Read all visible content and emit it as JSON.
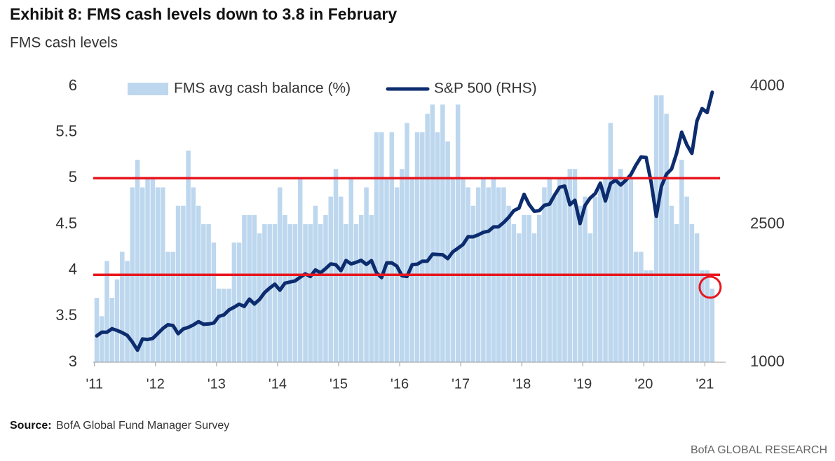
{
  "chart_data": {
    "type": "bar",
    "title": "Exhibit 8: FMS cash levels down to 3.8 in February",
    "subtitle": "FMS cash levels",
    "source_label": "Source:",
    "source_text": "BofA Global Fund Manager Survey",
    "footer": "BofA GLOBAL RESEARCH",
    "x": [
      2011,
      2011.083,
      2011.167,
      2011.25,
      2011.333,
      2011.417,
      2011.5,
      2011.583,
      2011.667,
      2011.75,
      2011.833,
      2011.917,
      2012,
      2012.083,
      2012.167,
      2012.25,
      2012.333,
      2012.417,
      2012.5,
      2012.583,
      2012.667,
      2012.75,
      2012.833,
      2012.917,
      2013,
      2013.083,
      2013.167,
      2013.25,
      2013.333,
      2013.417,
      2013.5,
      2013.583,
      2013.667,
      2013.75,
      2013.833,
      2013.917,
      2014,
      2014.083,
      2014.167,
      2014.25,
      2014.333,
      2014.417,
      2014.5,
      2014.583,
      2014.667,
      2014.75,
      2014.833,
      2014.917,
      2015,
      2015.083,
      2015.167,
      2015.25,
      2015.333,
      2015.417,
      2015.5,
      2015.583,
      2015.667,
      2015.75,
      2015.833,
      2015.917,
      2016,
      2016.083,
      2016.167,
      2016.25,
      2016.333,
      2016.417,
      2016.5,
      2016.583,
      2016.667,
      2016.75,
      2016.833,
      2016.917,
      2017,
      2017.083,
      2017.167,
      2017.25,
      2017.333,
      2017.417,
      2017.5,
      2017.583,
      2017.667,
      2017.75,
      2017.833,
      2017.917,
      2018,
      2018.083,
      2018.167,
      2018.25,
      2018.333,
      2018.417,
      2018.5,
      2018.583,
      2018.667,
      2018.75,
      2018.833,
      2018.917,
      2019,
      2019.083,
      2019.167,
      2019.25,
      2019.333,
      2019.417,
      2019.5,
      2019.583,
      2019.667,
      2019.75,
      2019.833,
      2019.917,
      2020,
      2020.083,
      2020.167,
      2020.25,
      2020.333,
      2020.417,
      2020.5,
      2020.583,
      2020.667,
      2020.75,
      2020.833,
      2020.917,
      2021,
      2021.083
    ],
    "series": [
      {
        "name": "FMS avg cash balance (%)",
        "type": "bar",
        "axis": "y",
        "color": "#bdd7ee",
        "values": [
          3.7,
          3.5,
          4.1,
          3.7,
          3.9,
          4.2,
          4.1,
          4.9,
          5.2,
          4.9,
          5.0,
          5.0,
          4.9,
          4.9,
          4.2,
          4.2,
          4.7,
          4.7,
          5.3,
          4.9,
          4.7,
          4.5,
          4.5,
          4.3,
          3.8,
          3.8,
          3.8,
          4.3,
          4.3,
          4.6,
          4.6,
          4.6,
          4.4,
          4.5,
          4.5,
          4.5,
          4.9,
          4.6,
          4.5,
          4.5,
          5.0,
          4.5,
          4.5,
          4.7,
          4.5,
          4.6,
          4.8,
          5.1,
          4.8,
          4.5,
          5.0,
          4.5,
          4.6,
          4.9,
          4.6,
          5.5,
          5.5,
          5.0,
          5.5,
          4.9,
          5.1,
          5.6,
          5.0,
          5.5,
          5.5,
          5.7,
          5.8,
          5.5,
          5.8,
          5.4,
          5.0,
          5.8,
          5.0,
          4.9,
          4.7,
          4.9,
          5.0,
          4.9,
          5.0,
          4.9,
          4.9,
          4.7,
          4.5,
          4.4,
          4.6,
          4.6,
          4.4,
          4.6,
          4.9,
          5.0,
          4.8,
          5.0,
          5.0,
          5.1,
          5.1,
          4.7,
          4.8,
          4.4,
          4.8,
          4.9,
          5.0,
          5.6,
          5.0,
          5.1,
          5.0,
          5.0,
          4.2,
          4.2,
          4.0,
          4.0,
          5.9,
          5.9,
          5.7,
          4.7,
          4.5,
          5.2,
          4.8,
          4.5,
          4.4,
          4.0,
          4.0,
          3.8
        ]
      },
      {
        "name": "S&P 500 (RHS)",
        "type": "line",
        "axis": "y2",
        "color": "#0c2c6e",
        "values": [
          1286,
          1327,
          1326,
          1364,
          1345,
          1321,
          1292,
          1219,
          1131,
          1253,
          1247,
          1258,
          1312,
          1366,
          1408,
          1398,
          1310,
          1362,
          1379,
          1406,
          1441,
          1412,
          1416,
          1426,
          1498,
          1515,
          1569,
          1598,
          1631,
          1606,
          1686,
          1633,
          1682,
          1757,
          1806,
          1848,
          1783,
          1859,
          1872,
          1884,
          1924,
          1960,
          1931,
          2003,
          1972,
          2018,
          2068,
          2059,
          1995,
          2105,
          2068,
          2086,
          2107,
          2063,
          2104,
          1972,
          1920,
          2079,
          2080,
          2044,
          1940,
          1932,
          2060,
          2065,
          2097,
          2099,
          2174,
          2171,
          2168,
          2126,
          2199,
          2239,
          2279,
          2364,
          2363,
          2384,
          2412,
          2423,
          2470,
          2472,
          2519,
          2575,
          2648,
          2674,
          2824,
          2714,
          2641,
          2648,
          2705,
          2718,
          2816,
          2902,
          2914,
          2712,
          2760,
          2507,
          2704,
          2784,
          2834,
          2946,
          2752,
          2942,
          2980,
          2926,
          2977,
          3038,
          3141,
          3231,
          3226,
          2954,
          2585,
          2912,
          3044,
          3100,
          3271,
          3500,
          3363,
          3270,
          3622,
          3756,
          3714,
          3934
        ]
      }
    ],
    "reference_lines": [
      {
        "value": 5,
        "color": "#e8171f"
      },
      {
        "value": 3.95,
        "color": "#e8171f"
      }
    ],
    "xlim": [
      2010.98,
      2021.34
    ],
    "xticks": [
      {
        "value": 2011,
        "label": "'11"
      },
      {
        "value": 2012,
        "label": "'12"
      },
      {
        "value": 2013,
        "label": "'13"
      },
      {
        "value": 2014,
        "label": "'14"
      },
      {
        "value": 2015,
        "label": "'15"
      },
      {
        "value": 2016,
        "label": "'16"
      },
      {
        "value": 2017,
        "label": "'17"
      },
      {
        "value": 2018,
        "label": "'18"
      },
      {
        "value": 2019,
        "label": "'19"
      },
      {
        "value": 2020,
        "label": "'20"
      },
      {
        "value": 2021,
        "label": "'21"
      }
    ],
    "ylim": [
      3,
      6
    ],
    "yticks": [
      3,
      3.5,
      4,
      4.5,
      5,
      5.5,
      6
    ],
    "y2lim": [
      1000,
      4000
    ],
    "y2ticks": [
      1000,
      2500,
      4000
    ],
    "grid": false
  }
}
